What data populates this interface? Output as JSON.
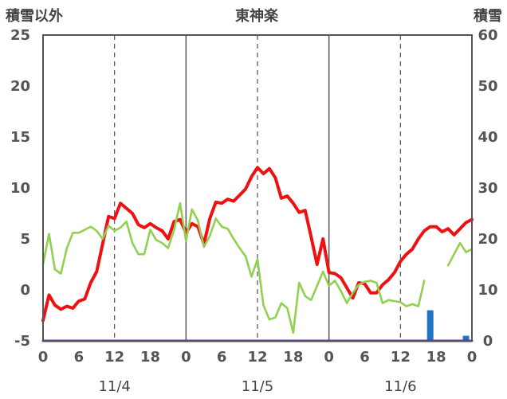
{
  "chart_data": {
    "type": "line",
    "title": "東神楽",
    "left_axis_label": "積雪以外",
    "right_axis_label": "積雪",
    "left_ylim": [
      -5,
      25
    ],
    "left_ticks": [
      "25",
      "20",
      "15",
      "10",
      "5",
      "0",
      "-5"
    ],
    "right_ylim": [
      0,
      60
    ],
    "right_ticks": [
      "60",
      "50",
      "40",
      "30",
      "20",
      "10",
      "0"
    ],
    "x_tick_labels": [
      "0",
      "6",
      "12",
      "18",
      "0",
      "6",
      "12",
      "18",
      "0",
      "6",
      "12",
      "18",
      "0"
    ],
    "x_range_hours": [
      0,
      72
    ],
    "date_labels": [
      "11/4",
      "11/5",
      "11/6"
    ],
    "grid": "dashed verticals at 12h, solid at midnight",
    "colors": {
      "red": "#ee1111",
      "green": "#92d050",
      "blue": "#1f77c4",
      "purple": "#7030a0",
      "grid": "#555555"
    },
    "series": [
      {
        "axis": "left",
        "style": "line",
        "color": "#ee1111",
        "x": [
          0,
          1,
          2,
          3,
          4,
          5,
          6,
          7,
          8,
          9,
          10,
          11,
          12,
          13,
          14,
          15,
          16,
          17,
          18,
          19,
          20,
          21,
          22,
          23,
          24,
          25,
          26,
          27,
          28,
          29,
          30,
          31,
          32,
          33,
          34,
          35,
          36,
          37,
          38,
          39,
          40,
          41,
          42,
          43,
          44,
          45,
          46,
          47,
          48,
          49,
          50,
          51,
          52,
          53,
          54,
          55,
          56,
          57,
          58,
          59,
          60,
          61,
          62,
          63,
          64,
          65,
          66,
          67,
          68,
          69,
          70,
          71,
          72
        ],
        "values": [
          -3,
          -0.5,
          -1.5,
          -1.9,
          -1.6,
          -1.8,
          -1.1,
          -0.9,
          0.7,
          1.8,
          4.5,
          7.2,
          7.0,
          8.5,
          8.0,
          7.5,
          6.4,
          6.1,
          6.5,
          6.1,
          5.8,
          5.0,
          6.7,
          6.9,
          5.6,
          6.5,
          6.2,
          4.5,
          7.0,
          8.6,
          8.5,
          8.9,
          8.7,
          9.3,
          9.9,
          11.1,
          12.0,
          11.4,
          11.9,
          11.0,
          9.0,
          9.2,
          8.5,
          7.6,
          7.8,
          5.2,
          2.5,
          5.0,
          1.7,
          1.6,
          1.2,
          0.2,
          -0.8,
          0.7,
          0.6,
          -0.3,
          -0.3,
          0.5,
          1.0,
          1.7,
          2.8,
          3.5,
          4.0,
          5.0,
          5.8,
          6.2,
          6.2,
          5.7,
          6.0,
          5.4,
          6.0,
          6.6,
          6.9
        ]
      },
      {
        "axis": "left",
        "style": "line",
        "color": "#92d050",
        "x": [
          0,
          1,
          2,
          3,
          4,
          5,
          6,
          7,
          8,
          9,
          10,
          11,
          12,
          13,
          14,
          15,
          16,
          17,
          18,
          19,
          20,
          21,
          22,
          23,
          24,
          25,
          26,
          27,
          28,
          29,
          30,
          31,
          32,
          33,
          34,
          35,
          36,
          37,
          38,
          39,
          40,
          41,
          42,
          43,
          44,
          45,
          46,
          47,
          48,
          49,
          50,
          51,
          52,
          53,
          54,
          55,
          56,
          57,
          58,
          59,
          60,
          61,
          62,
          63,
          64,
          65,
          66,
          67,
          68,
          69,
          70,
          71,
          72
        ],
        "values": [
          2.5,
          5.5,
          2.0,
          1.6,
          4.1,
          5.6,
          5.6,
          5.9,
          6.2,
          5.8,
          5.0,
          6.3,
          5.8,
          6.1,
          6.7,
          4.6,
          3.5,
          3.5,
          5.9,
          4.9,
          4.6,
          4.1,
          5.9,
          8.5,
          4.8,
          7.9,
          6.8,
          4.2,
          5.3,
          7.0,
          6.2,
          6.0,
          5.0,
          4.1,
          3.3,
          1.3,
          3.0,
          -1.5,
          -2.9,
          -2.7,
          -1.3,
          -1.8,
          -4.2,
          0.7,
          -0.6,
          -1.0,
          0.4,
          1.8,
          0.4,
          0.9,
          -0.1,
          -1.3,
          -0.3,
          0.5,
          0.8,
          0.9,
          0.7,
          -1.3,
          -1.0,
          -1.1,
          -1.2,
          -1.6,
          -1.4,
          -1.6,
          0.9,
          null,
          null,
          null,
          2.4,
          3.5,
          4.6,
          3.7,
          4.0
        ]
      },
      {
        "axis": "right",
        "style": "bar",
        "color": "#1f77c4",
        "x": [
          65,
          71
        ],
        "values": [
          6,
          1
        ]
      },
      {
        "axis": "left",
        "style": "line",
        "color": "#7030a0",
        "x": [
          0,
          72
        ],
        "values": [
          -5,
          -5
        ]
      }
    ]
  }
}
